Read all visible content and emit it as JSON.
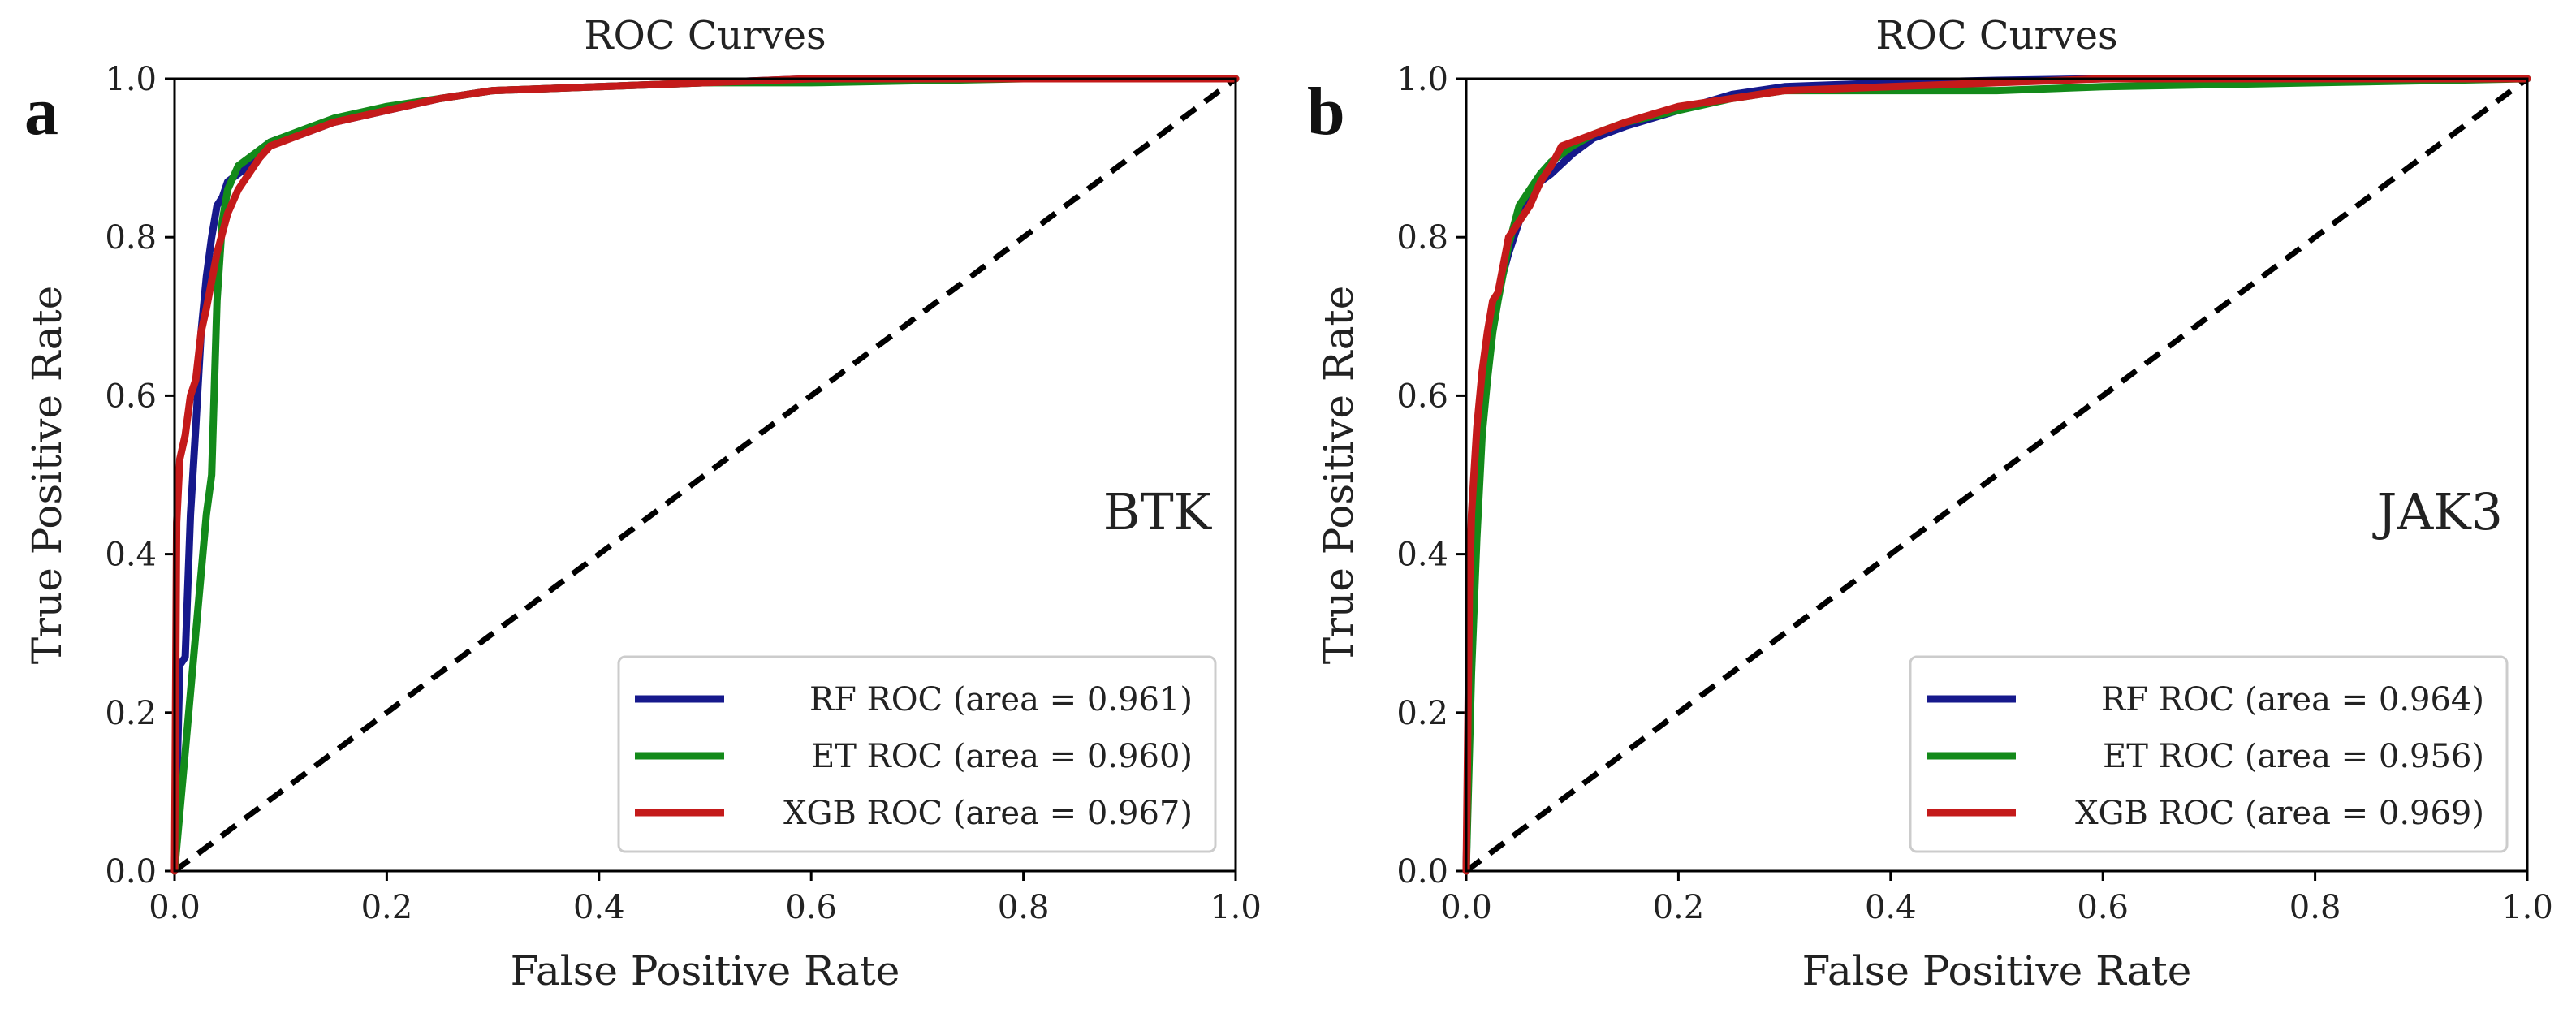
{
  "colors": {
    "rf": "#16198c",
    "et": "#138a1a",
    "xgb": "#c41a1a",
    "chance": "#000000"
  },
  "chart_data": [
    {
      "type": "line",
      "panel_label": "a",
      "title": "ROC  Curves",
      "xlabel": "False Positive Rate",
      "ylabel": "True Positive Rate",
      "xlim": [
        0.0,
        1.0
      ],
      "ylim": [
        0.0,
        1.0
      ],
      "xticks": [
        "0.0",
        "0.2",
        "0.4",
        "0.6",
        "0.8",
        "1.0"
      ],
      "yticks": [
        "0.0",
        "0.2",
        "0.4",
        "0.6",
        "0.8",
        "1.0"
      ],
      "annotation": "BTK",
      "legend_position": "lower-right",
      "chance_line": {
        "x": [
          0,
          1
        ],
        "y": [
          0,
          1
        ],
        "style": "dashed"
      },
      "series": [
        {
          "name": "RF",
          "label": "RF  ROC  (area = 0.961)",
          "color": "#16198c",
          "x": [
            0,
            0.005,
            0.01,
            0.015,
            0.02,
            0.025,
            0.03,
            0.035,
            0.04,
            0.045,
            0.05,
            0.06,
            0.07,
            0.08,
            0.09,
            0.1,
            0.12,
            0.15,
            0.2,
            0.25,
            0.3,
            0.4,
            0.5,
            0.6,
            0.8,
            1.0
          ],
          "y": [
            0,
            0.26,
            0.27,
            0.45,
            0.56,
            0.68,
            0.75,
            0.8,
            0.84,
            0.85,
            0.87,
            0.88,
            0.89,
            0.91,
            0.92,
            0.925,
            0.93,
            0.945,
            0.96,
            0.975,
            0.985,
            0.99,
            0.995,
            1.0,
            1.0,
            1.0
          ]
        },
        {
          "name": "ET",
          "label": "ET  ROC  (area = 0.960)",
          "color": "#138a1a",
          "x": [
            0,
            0.01,
            0.02,
            0.03,
            0.035,
            0.04,
            0.045,
            0.05,
            0.06,
            0.07,
            0.08,
            0.09,
            0.1,
            0.12,
            0.15,
            0.2,
            0.25,
            0.3,
            0.4,
            0.5,
            0.6,
            0.8,
            1.0
          ],
          "y": [
            0,
            0.15,
            0.3,
            0.45,
            0.5,
            0.72,
            0.82,
            0.86,
            0.89,
            0.9,
            0.91,
            0.92,
            0.925,
            0.935,
            0.95,
            0.965,
            0.975,
            0.985,
            0.99,
            0.995,
            0.995,
            1.0,
            1.0
          ]
        },
        {
          "name": "XGB",
          "label": "XGB  ROC  (area = 0.967)",
          "color": "#c41a1a",
          "x": [
            0,
            0.002,
            0.005,
            0.01,
            0.015,
            0.02,
            0.025,
            0.03,
            0.04,
            0.05,
            0.06,
            0.07,
            0.08,
            0.09,
            0.1,
            0.12,
            0.15,
            0.2,
            0.25,
            0.3,
            0.4,
            0.5,
            0.6,
            0.8,
            1.0
          ],
          "y": [
            0,
            0.44,
            0.52,
            0.55,
            0.6,
            0.62,
            0.68,
            0.71,
            0.78,
            0.83,
            0.86,
            0.88,
            0.9,
            0.915,
            0.92,
            0.93,
            0.945,
            0.96,
            0.975,
            0.985,
            0.99,
            0.995,
            1.0,
            1.0,
            1.0
          ]
        }
      ]
    },
    {
      "type": "line",
      "panel_label": "b",
      "title": "ROC  Curves",
      "xlabel": "False Positive Rate",
      "ylabel": "True Positive Rate",
      "xlim": [
        0.0,
        1.0
      ],
      "ylim": [
        0.0,
        1.0
      ],
      "xticks": [
        "0.0",
        "0.2",
        "0.4",
        "0.6",
        "0.8",
        "1.0"
      ],
      "yticks": [
        "0.0",
        "0.2",
        "0.4",
        "0.6",
        "0.8",
        "1.0"
      ],
      "annotation": "JAK3",
      "legend_position": "lower-right",
      "chance_line": {
        "x": [
          0,
          1
        ],
        "y": [
          0,
          1
        ],
        "style": "dashed"
      },
      "series": [
        {
          "name": "RF",
          "label": "RF  ROC  (area = 0.964)",
          "color": "#16198c",
          "x": [
            0,
            0.005,
            0.01,
            0.015,
            0.02,
            0.025,
            0.03,
            0.04,
            0.05,
            0.06,
            0.07,
            0.08,
            0.1,
            0.12,
            0.15,
            0.2,
            0.25,
            0.3,
            0.4,
            0.5,
            0.6,
            0.8,
            1.0
          ],
          "y": [
            0,
            0.35,
            0.5,
            0.6,
            0.66,
            0.7,
            0.73,
            0.78,
            0.82,
            0.85,
            0.87,
            0.88,
            0.905,
            0.925,
            0.94,
            0.96,
            0.98,
            0.99,
            0.995,
            0.998,
            1.0,
            1.0,
            1.0
          ]
        },
        {
          "name": "ET",
          "label": "ET  ROC  (area = 0.956)",
          "color": "#138a1a",
          "x": [
            0,
            0.005,
            0.01,
            0.015,
            0.02,
            0.025,
            0.03,
            0.04,
            0.05,
            0.06,
            0.07,
            0.08,
            0.1,
            0.12,
            0.15,
            0.2,
            0.25,
            0.3,
            0.4,
            0.5,
            0.6,
            0.8,
            1.0
          ],
          "y": [
            0,
            0.25,
            0.42,
            0.55,
            0.62,
            0.68,
            0.72,
            0.79,
            0.84,
            0.86,
            0.88,
            0.895,
            0.915,
            0.93,
            0.945,
            0.96,
            0.975,
            0.985,
            0.985,
            0.985,
            0.99,
            0.995,
            1.0
          ]
        },
        {
          "name": "XGB",
          "label": "XGB  ROC  (area = 0.969)",
          "color": "#c41a1a",
          "x": [
            0,
            0.003,
            0.005,
            0.01,
            0.015,
            0.02,
            0.025,
            0.03,
            0.04,
            0.05,
            0.06,
            0.07,
            0.08,
            0.09,
            0.1,
            0.12,
            0.15,
            0.2,
            0.25,
            0.3,
            0.4,
            0.5,
            0.6,
            0.8,
            1.0
          ],
          "y": [
            0,
            0.35,
            0.45,
            0.56,
            0.63,
            0.68,
            0.72,
            0.73,
            0.8,
            0.82,
            0.84,
            0.87,
            0.89,
            0.915,
            0.92,
            0.93,
            0.945,
            0.965,
            0.975,
            0.985,
            0.99,
            0.995,
            1.0,
            1.0,
            1.0
          ]
        }
      ]
    }
  ]
}
